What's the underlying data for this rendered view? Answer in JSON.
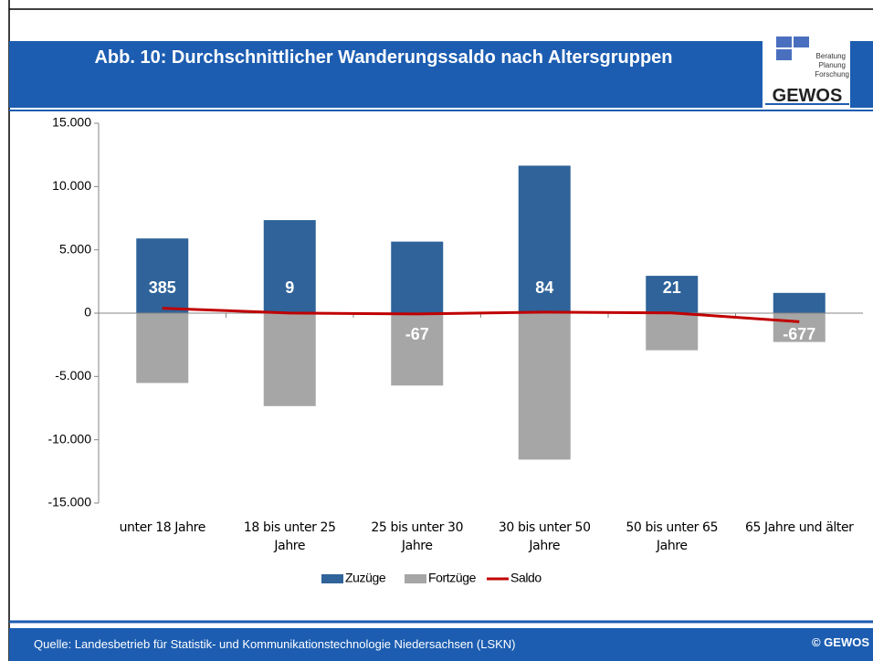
{
  "header": {
    "title": "Abb. 10: Durchschnittlicher Wanderungssaldo nach Altersgruppen"
  },
  "logo": {
    "lines": [
      "Beratung",
      "Planung",
      "Forschung"
    ],
    "name": "GEWOS"
  },
  "footer": {
    "source": "Quelle: Landesbetrieb für Statistik- und Kommunikationstechnologie Niedersachsen (LSKN)",
    "copyright": "© GEWOS"
  },
  "chart_data": {
    "type": "bar",
    "categories": [
      "unter 18 Jahre",
      "18 bis unter 25 Jahre",
      "25 bis unter 30 Jahre",
      "30 bis unter 50 Jahre",
      "50 bis unter 65 Jahre",
      "65 Jahre und älter"
    ],
    "series": [
      {
        "name": "Zuzüge",
        "type": "bar",
        "color": "#2f6399",
        "values": [
          5900,
          7350,
          5650,
          11650,
          2950,
          1600
        ]
      },
      {
        "name": "Fortzüge",
        "type": "bar",
        "color": "#a6a6a6",
        "values": [
          -5515,
          -7341,
          -5717,
          -11566,
          -2929,
          -2277
        ]
      },
      {
        "name": "Saldo",
        "type": "line",
        "color": "#c00000",
        "values": [
          385,
          9,
          -67,
          84,
          21,
          -677
        ]
      }
    ],
    "ylim": [
      -15000,
      15000
    ],
    "yticks": [
      {
        "value": -15000,
        "label": "-15.000"
      },
      {
        "value": -10000,
        "label": "-10.000"
      },
      {
        "value": -5000,
        "label": "-5.000"
      },
      0,
      {
        "value": 5000,
        "label": "5.000"
      },
      {
        "value": 10000,
        "label": "10.000"
      },
      {
        "value": 15000,
        "label": "15.000"
      }
    ],
    "grid": false,
    "legend": "bottom"
  }
}
